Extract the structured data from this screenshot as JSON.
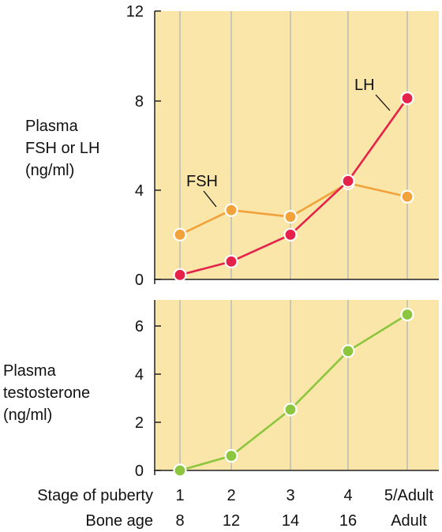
{
  "left_labels": {
    "top": [
      "Plasma",
      "FSH or LH",
      "(ng/ml)"
    ],
    "bottom": [
      "Plasma",
      "testosterone",
      "(ng/ml)"
    ]
  },
  "row_labels": {
    "stage": "Stage of puberty",
    "bone_age": "Bone age"
  },
  "colors": {
    "panel_bg": "#f9e6a8",
    "LH": "#e5224a",
    "FSH": "#f2a23a",
    "testosterone": "#8cc63f"
  },
  "chart_data": [
    {
      "type": "line",
      "categories": [
        "1",
        "2",
        "3",
        "4",
        "5/Adult"
      ],
      "secondary_categories": [
        "8",
        "12",
        "14",
        "16",
        "Adult"
      ],
      "ylim": [
        0,
        12
      ],
      "yticks": [
        "0",
        "4",
        "8",
        "12"
      ],
      "series": [
        {
          "name": "FSH",
          "values": [
            2.0,
            3.1,
            2.8,
            4.3,
            3.7
          ]
        },
        {
          "name": "LH",
          "values": [
            0.2,
            0.8,
            2.0,
            4.4,
            8.1
          ]
        }
      ]
    },
    {
      "type": "line",
      "categories": [
        "1",
        "2",
        "3",
        "4",
        "5/Adult"
      ],
      "secondary_categories": [
        "8",
        "12",
        "14",
        "16",
        "Adult"
      ],
      "ylim": [
        0,
        7
      ],
      "yticks": [
        "0",
        "2",
        "4",
        "6"
      ],
      "series": [
        {
          "values": [
            0.0,
            0.6,
            2.5,
            4.9,
            6.4
          ]
        }
      ]
    }
  ]
}
